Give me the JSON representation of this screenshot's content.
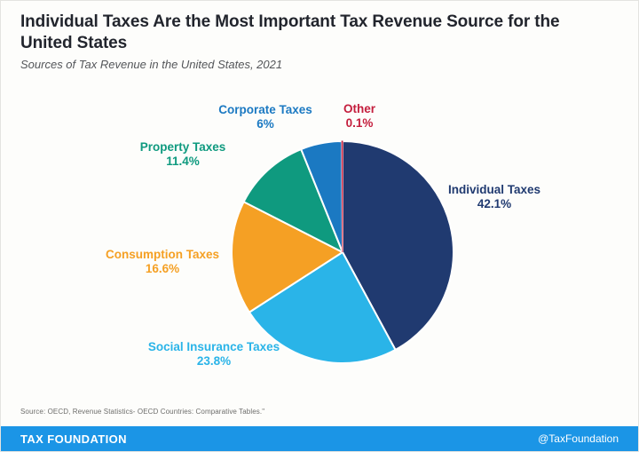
{
  "header": {
    "title": "Individual Taxes Are the Most Important Tax Revenue Source for the United States",
    "subtitle": "Sources of Tax Revenue in the United States, 2021"
  },
  "chart_data": {
    "type": "pie",
    "title": "Sources of Tax Revenue in the United States, 2021",
    "start_angle": "12 o'clock",
    "direction": "clockwise",
    "legend_position": "labels around pie",
    "slices": [
      {
        "label": "Individual Taxes",
        "value": 42.1,
        "display": "42.1%",
        "color": "#203a70"
      },
      {
        "label": "Social Insurance Taxes",
        "value": 23.8,
        "display": "23.8%",
        "color": "#2ab4e8"
      },
      {
        "label": "Consumption Taxes",
        "value": 16.6,
        "display": "16.6%",
        "color": "#f5a024"
      },
      {
        "label": "Property Taxes",
        "value": 11.4,
        "display": "11.4%",
        "color": "#0f9a7f"
      },
      {
        "label": "Corporate Taxes",
        "value": 6,
        "display": "6%",
        "color": "#1b79c2"
      },
      {
        "label": "Other",
        "value": 0.1,
        "display": "0.1%",
        "color": "#c41e3d"
      }
    ]
  },
  "footer": {
    "source": "Source: OECD, Revenue Statistics- OECD Countries: Comparative Tables.\"",
    "brand": "TAX FOUNDATION",
    "handle": "@TaxFoundation",
    "bar_color": "#1b95e6"
  }
}
